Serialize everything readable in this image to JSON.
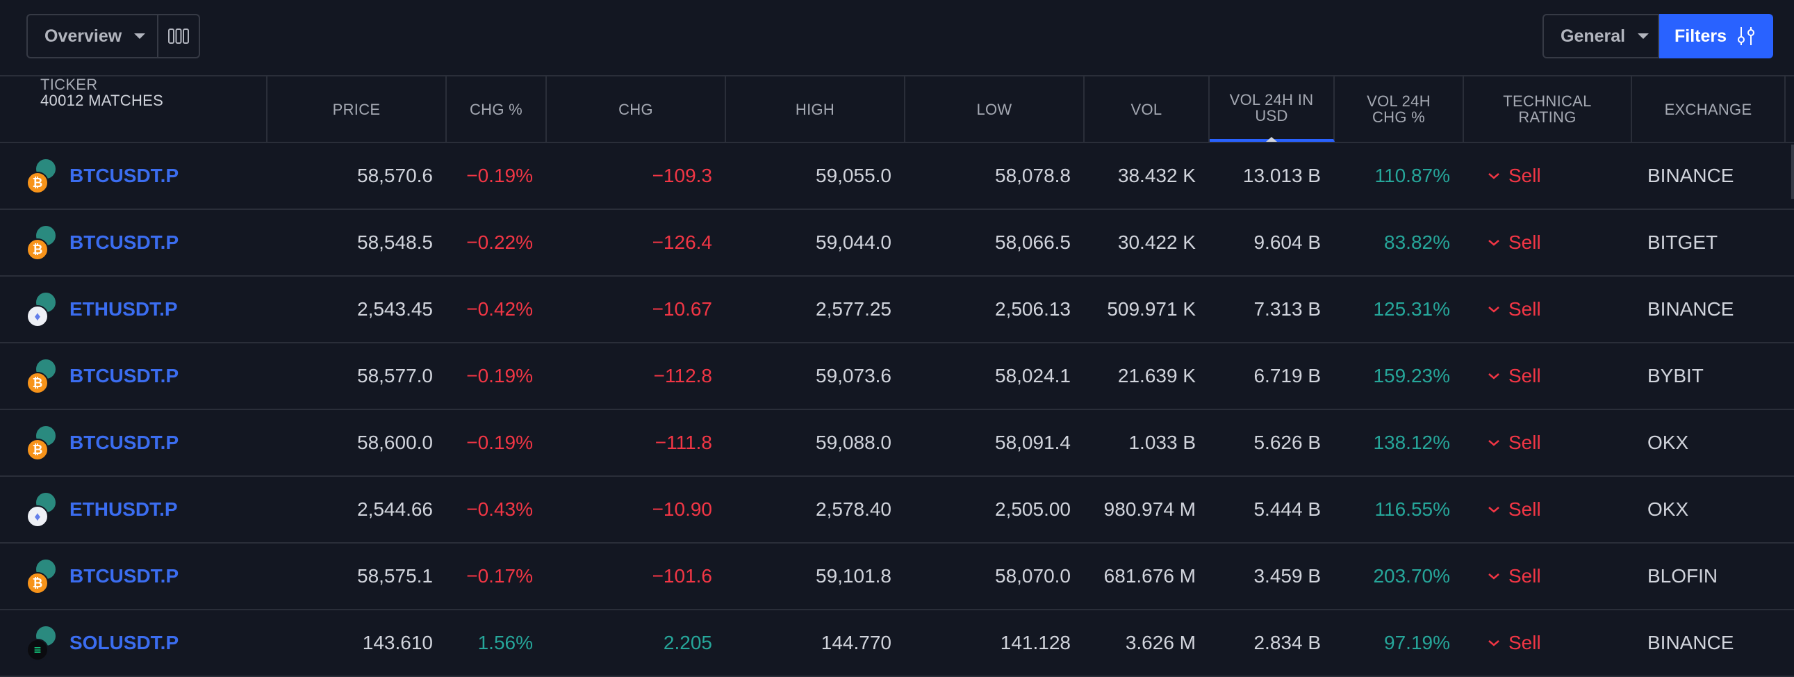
{
  "toolbar": {
    "overview_label": "Overview",
    "general_label": "General",
    "filters_label": "Filters"
  },
  "columns": {
    "ticker": "TICKER",
    "matches": "40012 MATCHES",
    "price": "PRICE",
    "chg_pct": "CHG %",
    "chg": "CHG",
    "high": "HIGH",
    "low": "LOW",
    "vol": "VOL",
    "vol24_usd_1": "VOL 24H IN",
    "vol24_usd_2": "USD",
    "vol24_chg_1": "VOL 24H",
    "vol24_chg_2": "CHG %",
    "rating_1": "TECHNICAL",
    "rating_2": "RATING",
    "exchange": "EXCHANGE"
  },
  "rows": [
    {
      "ticker": "BTCUSDT.P",
      "coin": "btc",
      "coin_glyph": "₿",
      "price": "58,570.6",
      "chg_pct": "−0.19%",
      "chg": "−109.3",
      "high": "59,055.0",
      "low": "58,078.8",
      "vol": "38.432 K",
      "vol24_usd": "13.013 B",
      "vol24_chg": "110.87%",
      "rating": "Sell",
      "exchange": "BINANCE",
      "chg_dir": "neg"
    },
    {
      "ticker": "BTCUSDT.P",
      "coin": "btc",
      "coin_glyph": "₿",
      "price": "58,548.5",
      "chg_pct": "−0.22%",
      "chg": "−126.4",
      "high": "59,044.0",
      "low": "58,066.5",
      "vol": "30.422 K",
      "vol24_usd": "9.604 B",
      "vol24_chg": "83.82%",
      "rating": "Sell",
      "exchange": "BITGET",
      "chg_dir": "neg"
    },
    {
      "ticker": "ETHUSDT.P",
      "coin": "eth",
      "coin_glyph": "♦",
      "price": "2,543.45",
      "chg_pct": "−0.42%",
      "chg": "−10.67",
      "high": "2,577.25",
      "low": "2,506.13",
      "vol": "509.971 K",
      "vol24_usd": "7.313 B",
      "vol24_chg": "125.31%",
      "rating": "Sell",
      "exchange": "BINANCE",
      "chg_dir": "neg"
    },
    {
      "ticker": "BTCUSDT.P",
      "coin": "btc",
      "coin_glyph": "₿",
      "price": "58,577.0",
      "chg_pct": "−0.19%",
      "chg": "−112.8",
      "high": "59,073.6",
      "low": "58,024.1",
      "vol": "21.639 K",
      "vol24_usd": "6.719 B",
      "vol24_chg": "159.23%",
      "rating": "Sell",
      "exchange": "BYBIT",
      "chg_dir": "neg"
    },
    {
      "ticker": "BTCUSDT.P",
      "coin": "btc",
      "coin_glyph": "₿",
      "price": "58,600.0",
      "chg_pct": "−0.19%",
      "chg": "−111.8",
      "high": "59,088.0",
      "low": "58,091.4",
      "vol": "1.033 B",
      "vol24_usd": "5.626 B",
      "vol24_chg": "138.12%",
      "rating": "Sell",
      "exchange": "OKX",
      "chg_dir": "neg"
    },
    {
      "ticker": "ETHUSDT.P",
      "coin": "eth",
      "coin_glyph": "♦",
      "price": "2,544.66",
      "chg_pct": "−0.43%",
      "chg": "−10.90",
      "high": "2,578.40",
      "low": "2,505.00",
      "vol": "980.974 M",
      "vol24_usd": "5.444 B",
      "vol24_chg": "116.55%",
      "rating": "Sell",
      "exchange": "OKX",
      "chg_dir": "neg"
    },
    {
      "ticker": "BTCUSDT.P",
      "coin": "btc",
      "coin_glyph": "₿",
      "price": "58,575.1",
      "chg_pct": "−0.17%",
      "chg": "−101.6",
      "high": "59,101.8",
      "low": "58,070.0",
      "vol": "681.676 M",
      "vol24_usd": "3.459 B",
      "vol24_chg": "203.70%",
      "rating": "Sell",
      "exchange": "BLOFIN",
      "chg_dir": "neg"
    },
    {
      "ticker": "SOLUSDT.P",
      "coin": "sol",
      "coin_glyph": "≡",
      "price": "143.610",
      "chg_pct": "1.56%",
      "chg": "2.205",
      "high": "144.770",
      "low": "141.128",
      "vol": "3.626 M",
      "vol24_usd": "2.834 B",
      "vol24_chg": "97.19%",
      "rating": "Sell",
      "exchange": "BINANCE",
      "chg_dir": "pos"
    }
  ],
  "colors": {
    "accent": "#2962ff",
    "negative": "#f23645",
    "positive": "#26a69a",
    "ticker_link": "#3b6df0"
  }
}
